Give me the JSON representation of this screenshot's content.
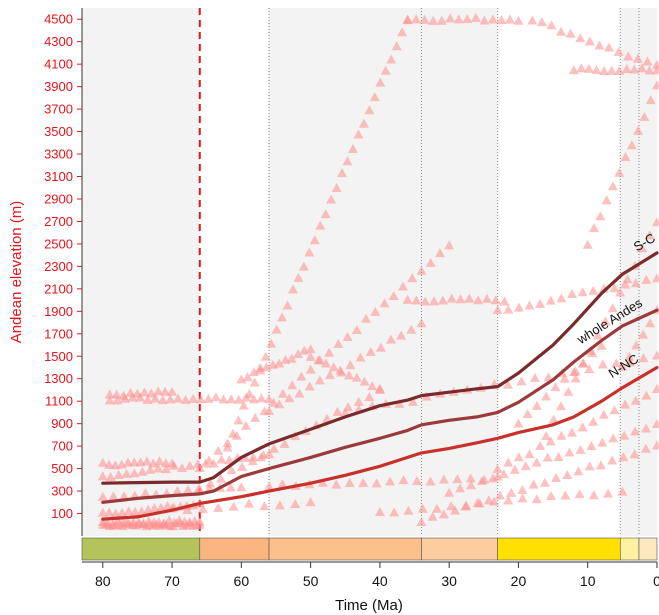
{
  "chart_data": {
    "type": "scatter",
    "xlabel": "Time (Ma)",
    "ylabel": "Andean elevation (m)",
    "xlim": [
      83,
      0
    ],
    "ylim": [
      -100,
      4600
    ],
    "x_ticks": [
      "80",
      "70",
      "60",
      "50",
      "40",
      "30",
      "20",
      "10",
      "0"
    ],
    "x_tick_values": [
      80,
      70,
      60,
      50,
      40,
      30,
      20,
      10,
      0
    ],
    "y_ticks": [
      "100",
      "300",
      "500",
      "700",
      "900",
      "1100",
      "1300",
      "1500",
      "1700",
      "1900",
      "2100",
      "2300",
      "2500",
      "2700",
      "2900",
      "3100",
      "3300",
      "3500",
      "3700",
      "3900",
      "4100",
      "4300",
      "4500"
    ],
    "y_tick_values": [
      100,
      300,
      500,
      700,
      900,
      1100,
      1300,
      1500,
      1700,
      1900,
      2100,
      2300,
      2500,
      2700,
      2900,
      3100,
      3300,
      3500,
      3700,
      3900,
      4100,
      4300,
      4500
    ],
    "grid": false,
    "background_bands": [
      {
        "from": 83,
        "to": 66,
        "color": "#f3f3f3"
      },
      {
        "from": 56,
        "to": 23,
        "color": "#f3f3f3"
      },
      {
        "from": 5.3,
        "to": 2.6,
        "color": "#f3f3f3"
      },
      {
        "from": 2.6,
        "to": 0,
        "color": "#f3f3f3"
      }
    ],
    "boundaries_dashed": [
      56,
      34,
      23,
      5.3,
      2.6
    ],
    "kpg_boundary": 66,
    "kpg_color": "#e8141b",
    "epoch_bar": [
      {
        "from": 83,
        "to": 66,
        "color": "#b5c45a"
      },
      {
        "from": 66,
        "to": 56,
        "color": "#f9b47f"
      },
      {
        "from": 56,
        "to": 34,
        "color": "#fcc08c"
      },
      {
        "from": 34,
        "to": 23,
        "color": "#fdcd9f"
      },
      {
        "from": 23,
        "to": 5.3,
        "color": "#ffe000"
      },
      {
        "from": 5.3,
        "to": 2.6,
        "color": "#fff1a0"
      },
      {
        "from": 2.6,
        "to": 0,
        "color": "#fde9bf"
      }
    ],
    "series": [
      {
        "name": "S-C",
        "color": "#7a2a2a",
        "x": [
          80,
          75,
          70,
          66,
          64,
          60,
          56,
          50,
          45,
          40,
          36,
          34,
          30,
          26,
          23,
          20,
          15,
          12,
          8,
          5,
          0
        ],
        "y": [
          370,
          375,
          380,
          380,
          420,
          600,
          720,
          850,
          960,
          1060,
          1110,
          1150,
          1180,
          1210,
          1230,
          1350,
          1600,
          1790,
          2060,
          2230,
          2420
        ]
      },
      {
        "name": "whole Andes",
        "color": "#9c3a3a",
        "x": [
          80,
          75,
          70,
          66,
          64,
          60,
          56,
          50,
          45,
          40,
          36,
          34,
          30,
          26,
          23,
          20,
          15,
          12,
          8,
          5,
          0
        ],
        "y": [
          200,
          235,
          260,
          275,
          300,
          430,
          500,
          600,
          690,
          770,
          840,
          890,
          930,
          960,
          1000,
          1090,
          1290,
          1450,
          1640,
          1770,
          1910
        ]
      },
      {
        "name": "N-NC",
        "color": "#c8302a",
        "x": [
          80,
          75,
          70,
          66,
          64,
          60,
          56,
          50,
          45,
          40,
          36,
          34,
          30,
          26,
          23,
          20,
          15,
          12,
          8,
          5,
          0
        ],
        "y": [
          50,
          70,
          130,
          190,
          210,
          250,
          300,
          370,
          440,
          520,
          600,
          640,
          680,
          730,
          770,
          820,
          890,
          960,
          1100,
          1220,
          1400
        ]
      }
    ],
    "annotations": [
      {
        "text": "S-C",
        "x": 1.5,
        "y": 2480,
        "rotate": -30
      },
      {
        "text": "whole Andes",
        "x": 6.5,
        "y": 1780,
        "rotate": -32
      },
      {
        "text": "N-NC",
        "x": 4.5,
        "y": 1380,
        "rotate": -32
      }
    ],
    "scatter_color": "#ff8c8c",
    "scatter_tracks": [
      {
        "x0": 80,
        "x1": 66,
        "y0": 0,
        "y1": 0,
        "n": 30
      },
      {
        "x0": 80,
        "x1": 66,
        "y0": 20,
        "y1": 30,
        "n": 20
      },
      {
        "x0": 80,
        "x1": 66,
        "y0": 100,
        "y1": 180,
        "n": 16
      },
      {
        "x0": 80,
        "x1": 60,
        "y0": 250,
        "y1": 330,
        "n": 14
      },
      {
        "x0": 80,
        "x1": 56,
        "y0": 430,
        "y1": 620,
        "n": 22
      },
      {
        "x0": 80,
        "x1": 70,
        "y0": 540,
        "y1": 560,
        "n": 12
      },
      {
        "x0": 79,
        "x1": 56,
        "y0": 1120,
        "y1": 1130,
        "n": 22
      },
      {
        "x0": 79,
        "x1": 70,
        "y0": 1160,
        "y1": 1180,
        "n": 10
      },
      {
        "x0": 66,
        "x1": 40,
        "y0": 320,
        "y1": 1200,
        "n": 18
      },
      {
        "x0": 66,
        "x1": 30,
        "y0": 500,
        "y1": 2480,
        "n": 28
      },
      {
        "x0": 62,
        "x1": 36,
        "y0": 700,
        "y1": 4500,
        "n": 34
      },
      {
        "x0": 36,
        "x1": 20,
        "y0": 4500,
        "y1": 4500,
        "n": 14
      },
      {
        "x0": 18,
        "x1": 0,
        "y0": 4500,
        "y1": 4080,
        "n": 14
      },
      {
        "x0": 12,
        "x1": 0,
        "y0": 4050,
        "y1": 4050,
        "n": 12
      },
      {
        "x0": 60,
        "x1": 50,
        "y0": 1300,
        "y1": 1560,
        "n": 12
      },
      {
        "x0": 50,
        "x1": 40,
        "y0": 1500,
        "y1": 1200,
        "n": 10
      },
      {
        "x0": 36,
        "x1": 22,
        "y0": 2000,
        "y1": 2000,
        "n": 12
      },
      {
        "x0": 23,
        "x1": 0,
        "y0": 1900,
        "y1": 2200,
        "n": 16
      },
      {
        "x0": 56,
        "x1": 34,
        "y0": 1020,
        "y1": 1800,
        "n": 16
      },
      {
        "x0": 45,
        "x1": 0,
        "y0": 1000,
        "y1": 1500,
        "n": 24
      },
      {
        "x0": 30,
        "x1": 0,
        "y0": 300,
        "y1": 900,
        "n": 20
      },
      {
        "x0": 34,
        "x1": 0,
        "y0": 30,
        "y1": 700,
        "n": 22
      },
      {
        "x0": 56,
        "x1": 23,
        "y0": 350,
        "y1": 420,
        "n": 18
      },
      {
        "x0": 23,
        "x1": 0,
        "y0": 500,
        "y1": 1200,
        "n": 16
      },
      {
        "x0": 16,
        "x1": 0,
        "y0": 800,
        "y1": 2700,
        "n": 16
      },
      {
        "x0": 10,
        "x1": 0,
        "y0": 2500,
        "y1": 3900,
        "n": 12
      },
      {
        "x0": 70,
        "x1": 50,
        "y0": 140,
        "y1": 200,
        "n": 10
      },
      {
        "x0": 40,
        "x1": 5,
        "y0": 110,
        "y1": 300,
        "n": 18
      },
      {
        "x0": 20,
        "x1": 8,
        "y0": 900,
        "y1": 1600,
        "n": 10
      },
      {
        "x0": 5,
        "x1": 0,
        "y0": 1400,
        "y1": 1900,
        "n": 6
      }
    ]
  }
}
